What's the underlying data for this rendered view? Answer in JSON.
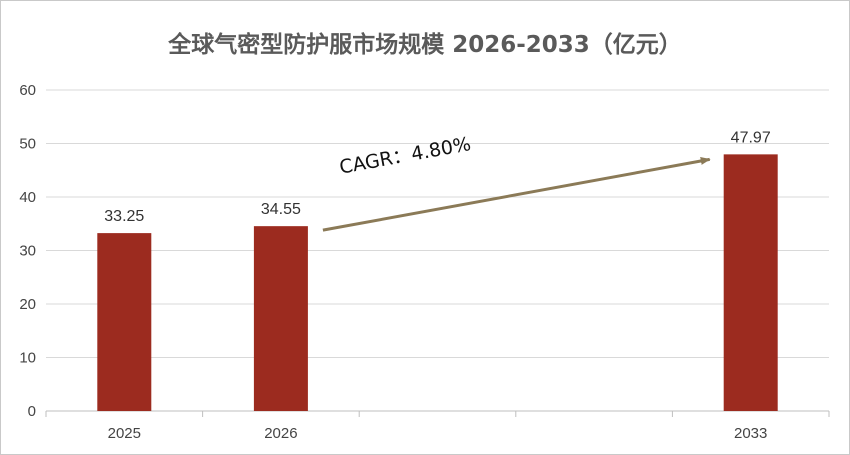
{
  "chart_data": {
    "type": "bar",
    "title": "全球气密型防护服市场规模 2026-2033（亿元）",
    "categories": [
      "2025",
      "2026",
      "",
      "",
      "2033"
    ],
    "values": [
      33.25,
      34.55,
      null,
      null,
      47.97
    ],
    "value_labels": [
      "33.25",
      "34.55",
      "",
      "",
      "47.97"
    ],
    "yticks": [
      0,
      10,
      20,
      30,
      40,
      50,
      60
    ],
    "ylim": [
      0,
      60
    ],
    "grid": true,
    "bar_color": "#9c2b1f",
    "annotation": {
      "text": "CAGR：4.80%",
      "from_category": "2026",
      "to_category": "2033",
      "color": "#8b7a57"
    }
  }
}
